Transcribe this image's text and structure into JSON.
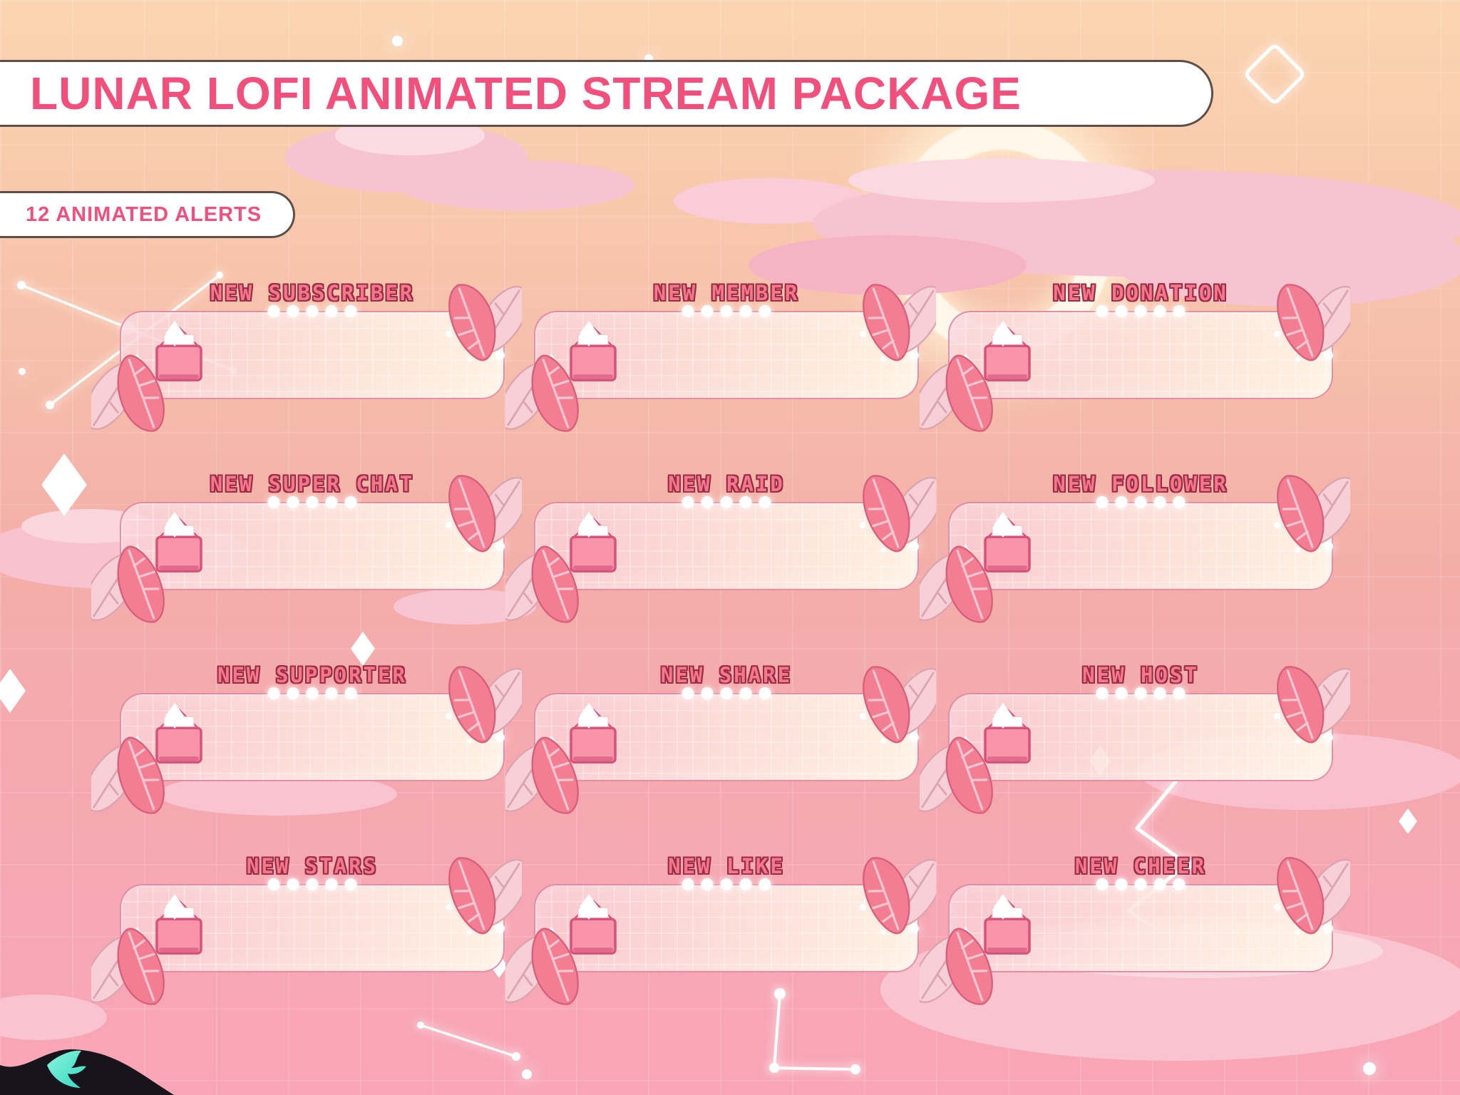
{
  "header": {
    "title": "LUNAR LOFI ANIMATED STREAM PACKAGE",
    "badge": "12 ANIMATED ALERTS"
  },
  "alerts": [
    {
      "label": "NEW SUBSCRIBER"
    },
    {
      "label": "NEW MEMBER"
    },
    {
      "label": "NEW DONATION"
    },
    {
      "label": "NEW SUPER CHAT"
    },
    {
      "label": "NEW RAID"
    },
    {
      "label": "NEW FOLLOWER"
    },
    {
      "label": "NEW SUPPORTER"
    },
    {
      "label": "NEW SHARE"
    },
    {
      "label": "NEW HOST"
    },
    {
      "label": "NEW STARS"
    },
    {
      "label": "NEW LIKE"
    },
    {
      "label": "NEW CHEER"
    }
  ],
  "alert_dot_count": 5,
  "icons": {
    "alert_icon": "envelope-icon",
    "corner_decoration": "monstera-leaf-icon",
    "background_decorations": [
      "crescent-moon",
      "pink-clouds",
      "constellations",
      "sparkle-diamonds",
      "lightning-zigzag"
    ],
    "watermark": "teal-bird-logo"
  },
  "colors": {
    "banner_text": "#F2507C",
    "pixel_title_fill": "#F3788D",
    "pixel_title_outline": "#9A2C44",
    "panel_border": "#E27D9C",
    "envelope_body": "#F794A8",
    "envelope_border": "#D6537A",
    "leaf_dark": "#F37E93",
    "leaf_light": "#F7CFD6",
    "cloud": "#F8C3D1",
    "background_top": "#FBD5B1",
    "background_bottom": "#F8A5B7",
    "logo_teal": "#3BE3C3"
  }
}
